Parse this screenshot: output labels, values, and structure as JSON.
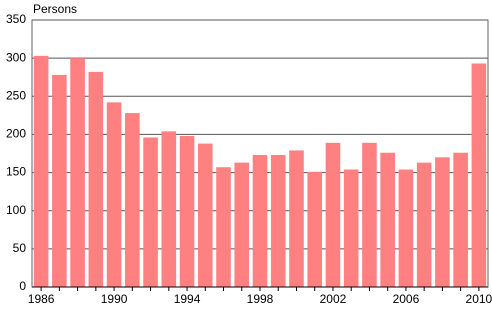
{
  "chart_data": {
    "type": "bar",
    "y_label": "Persons",
    "categories": [
      "1986",
      null,
      null,
      null,
      "1990",
      null,
      null,
      null,
      "1994",
      null,
      null,
      null,
      "1998",
      null,
      null,
      null,
      "2002",
      null,
      null,
      null,
      "2006",
      null,
      null,
      null,
      "2010"
    ],
    "values": [
      303,
      278,
      300,
      282,
      242,
      228,
      196,
      204,
      198,
      188,
      157,
      163,
      173,
      173,
      179,
      151,
      189,
      154,
      189,
      176,
      154,
      163,
      170,
      176,
      293
    ],
    "color": "#ff8080",
    "ylim": [
      0,
      350
    ],
    "yticks": [
      0,
      50,
      100,
      150,
      200,
      250,
      300,
      350
    ],
    "grid": true
  }
}
